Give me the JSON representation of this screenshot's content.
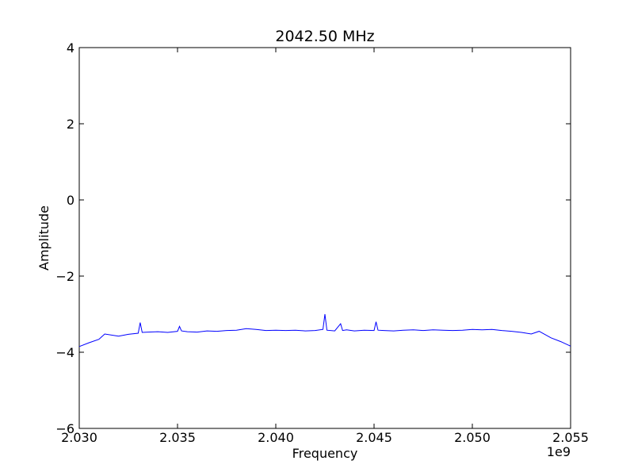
{
  "chart_data": {
    "type": "line",
    "title": "2042.50 MHz",
    "xlabel": "Frequency",
    "ylabel": "Amplitude",
    "x_offset_label": "1e9",
    "xlim": [
      2.03,
      2.055
    ],
    "ylim": [
      -6,
      4
    ],
    "x_ticks": [
      2.03,
      2.035,
      2.04,
      2.045,
      2.05,
      2.055
    ],
    "x_tick_labels": [
      "2.030",
      "2.035",
      "2.040",
      "2.045",
      "2.050",
      "2.055"
    ],
    "y_ticks": [
      -6,
      -4,
      -2,
      0,
      2,
      4
    ],
    "y_tick_labels": [
      "−6",
      "−4",
      "−2",
      "0",
      "2",
      "4"
    ],
    "grid": false,
    "series": [
      {
        "color": "#0000ff",
        "x": [
          2.03,
          2.0305,
          2.031,
          2.0313,
          2.032,
          2.0325,
          2.033,
          2.0331,
          2.0332,
          2.0335,
          2.034,
          2.0345,
          2.035,
          2.0351,
          2.0352,
          2.0355,
          2.036,
          2.0365,
          2.037,
          2.0375,
          2.038,
          2.0385,
          2.039,
          2.0395,
          2.04,
          2.0405,
          2.041,
          2.0415,
          2.042,
          2.0424,
          2.0425,
          2.0426,
          2.043,
          2.0433,
          2.0434,
          2.0436,
          2.044,
          2.0445,
          2.045,
          2.0451,
          2.0452,
          2.0455,
          2.046,
          2.0465,
          2.047,
          2.0475,
          2.048,
          2.0485,
          2.049,
          2.0495,
          2.05,
          2.0505,
          2.051,
          2.0515,
          2.052,
          2.0525,
          2.053,
          2.0534,
          2.054,
          2.0545,
          2.055
        ],
        "y": [
          -3.85,
          -3.75,
          -3.66,
          -3.52,
          -3.58,
          -3.53,
          -3.5,
          -3.22,
          -3.48,
          -3.47,
          -3.46,
          -3.48,
          -3.45,
          -3.32,
          -3.44,
          -3.46,
          -3.47,
          -3.44,
          -3.45,
          -3.43,
          -3.42,
          -3.38,
          -3.4,
          -3.43,
          -3.42,
          -3.43,
          -3.42,
          -3.44,
          -3.43,
          -3.4,
          -3.0,
          -3.42,
          -3.44,
          -3.25,
          -3.43,
          -3.41,
          -3.44,
          -3.42,
          -3.43,
          -3.2,
          -3.42,
          -3.43,
          -3.44,
          -3.42,
          -3.41,
          -3.43,
          -3.41,
          -3.42,
          -3.43,
          -3.42,
          -3.4,
          -3.41,
          -3.4,
          -3.43,
          -3.45,
          -3.48,
          -3.52,
          -3.45,
          -3.62,
          -3.72,
          -3.84
        ]
      }
    ]
  }
}
